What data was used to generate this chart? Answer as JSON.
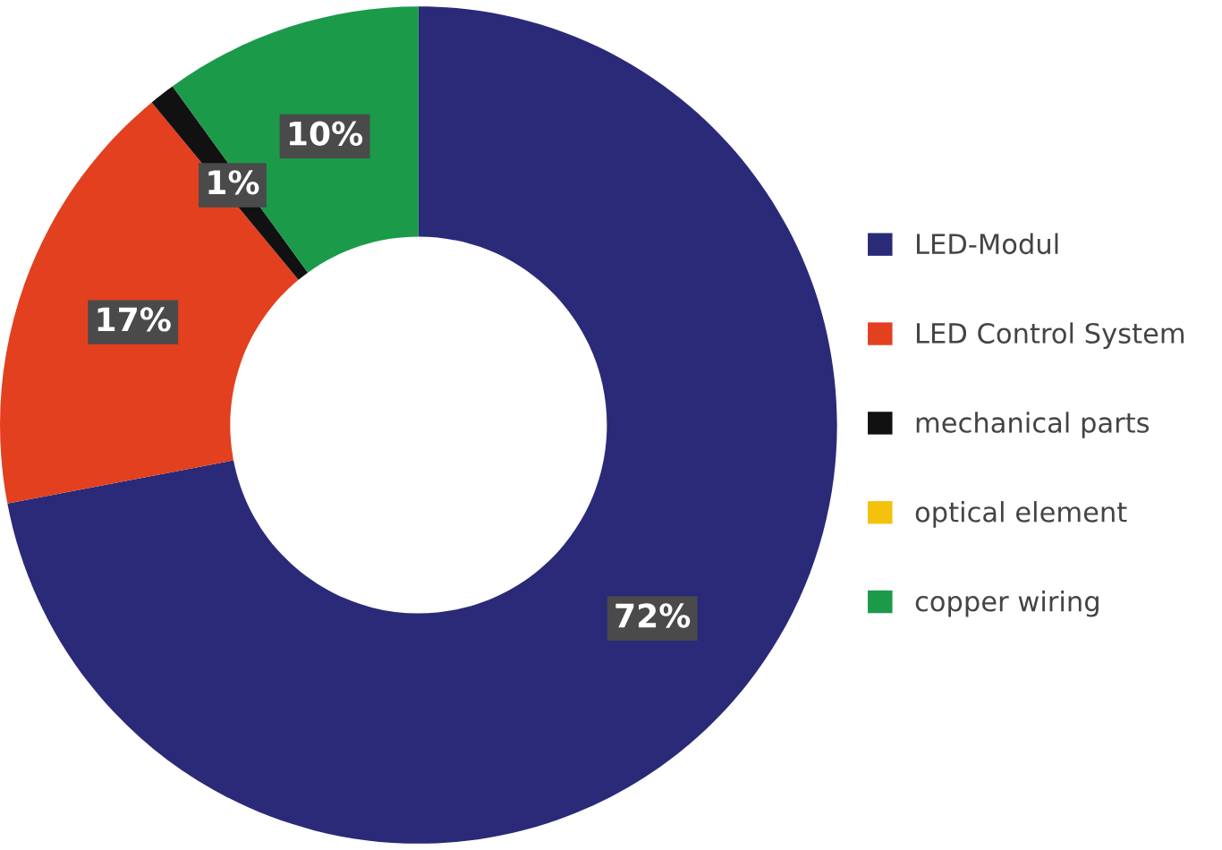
{
  "chart_data": {
    "type": "donut",
    "categories": [
      "LED-Modul",
      "LED Control System",
      "mechanical parts",
      "optical element",
      "copper wiring"
    ],
    "values": [
      72,
      17,
      1,
      0,
      10
    ],
    "value_labels": [
      "72%",
      "17%",
      "1%",
      null,
      "10%"
    ],
    "colors": [
      "#2b2a78",
      "#e2401f",
      "#111111",
      "#f4c20d",
      "#1b9a4a"
    ],
    "legend": "right"
  }
}
